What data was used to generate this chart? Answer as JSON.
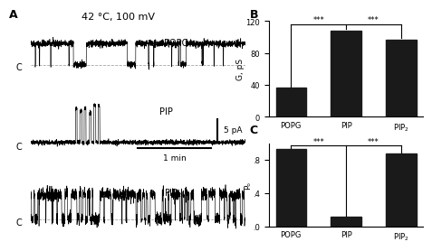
{
  "title": "42 °C, 100 mV",
  "panel_A_label": "A",
  "panel_B_label": "B",
  "panel_C_label": "C",
  "bar_categories": [
    "POPG",
    "PIP",
    "PIP₂"
  ],
  "bar_G_values": [
    36,
    108,
    97
  ],
  "bar_Po_values": [
    0.93,
    0.12,
    0.88
  ],
  "bar_G_ylim": [
    0,
    120
  ],
  "bar_Po_ylim": [
    0.0,
    1.0
  ],
  "bar_G_yticks": [
    0,
    40,
    80,
    120
  ],
  "bar_Po_yticks": [
    0.0,
    0.4,
    0.8
  ],
  "bar_G_ylabel": "G, pS",
  "bar_Po_ylabel": "Pₒ",
  "bar_color": "#1a1a1a",
  "bar_width": 0.55,
  "sig_label": "***",
  "trace_labels": [
    "POPG",
    "PIP",
    "PIP₂"
  ],
  "scale_bar_time": "1 min",
  "scale_bar_current": "5 pA",
  "bg_color": "#ffffff",
  "text_color": "#000000"
}
